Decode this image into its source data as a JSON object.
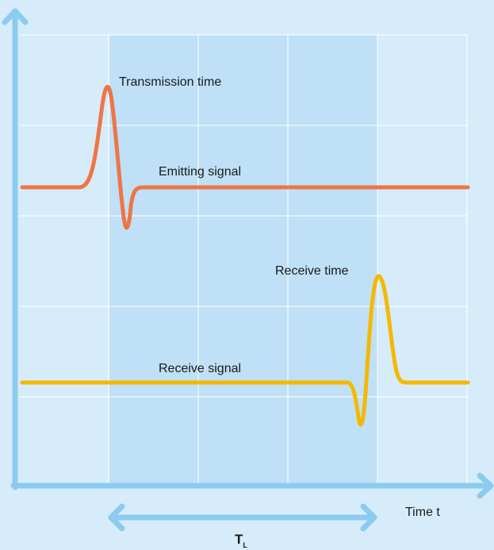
{
  "colors": {
    "background": "#d6ecfa",
    "highlight_band": "#bfe0f6",
    "grid": "#ffffff",
    "axis": "#8ccbf0",
    "emitting_signal": "#ef7545",
    "receive_signal": "#f5b800",
    "text": "#1a1a1a"
  },
  "labels": {
    "transmission_time": "Transmission time",
    "emitting_signal": "Emitting signal",
    "receive_time": "Receive time",
    "receive_signal": "Receive signal",
    "x_axis": "Time t",
    "interval_main": "T",
    "interval_sub": "L"
  },
  "icons": {
    "y_axis_arrow": "arrow-up-icon",
    "x_axis_arrow": "arrow-right-icon",
    "interval_arrow": "double-arrow-icon"
  }
}
